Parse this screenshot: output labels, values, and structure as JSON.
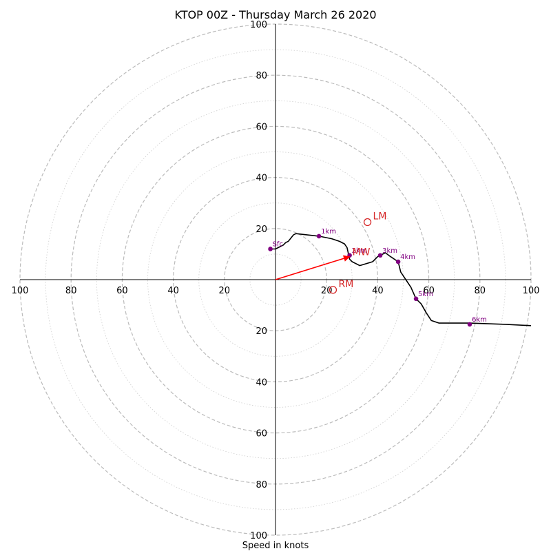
{
  "chart_data": {
    "type": "scatter",
    "subtype": "hodograph",
    "title": "KTOP 00Z - Thursday March 26 2020",
    "xlabel": "Speed in knots",
    "ylabel": "",
    "xlim": [
      -100,
      100
    ],
    "ylim": [
      -100,
      100
    ],
    "grid": true,
    "ring_major_step": 20,
    "ring_minor_step": 10,
    "tick_labels_x": [
      "100",
      "80",
      "60",
      "40",
      "20",
      "",
      "20",
      "40",
      "60",
      "80",
      "100"
    ],
    "tick_labels_y": [
      "100",
      "80",
      "60",
      "40",
      "20",
      "",
      "20",
      "40",
      "60",
      "80",
      "100"
    ],
    "colors": {
      "trace": "#000000",
      "height_markers": "#800080",
      "storm_motion": "#d62728",
      "mean_wind_arrow": "#ff0000",
      "major_grid": "#bbbbbb",
      "minor_grid": "#d2d2d2"
    },
    "trace": {
      "u": [
        -2,
        0,
        3,
        4,
        5,
        7,
        8,
        17,
        22,
        25,
        27,
        28,
        29,
        30,
        33,
        38,
        40,
        43,
        45,
        48,
        49,
        50,
        51,
        53,
        55,
        57,
        59,
        61,
        64,
        70,
        76,
        90,
        100
      ],
      "v": [
        12,
        12,
        13.5,
        14.5,
        15,
        17.5,
        18,
        17,
        16,
        15,
        14,
        12.5,
        8,
        7,
        5.5,
        7,
        9,
        10.5,
        9,
        7,
        3,
        1.5,
        0,
        -3,
        -7.5,
        -9.5,
        -13,
        -16,
        -17,
        -17,
        -17,
        -17.5,
        -18
      ]
    },
    "height_markers": [
      {
        "label": "Sfc",
        "u": -2,
        "v": 12
      },
      {
        "label": "1km",
        "u": 17,
        "v": 17
      },
      {
        "label": "2km",
        "u": 29,
        "v": 9.5
      },
      {
        "label": "3km",
        "u": 41,
        "v": 9.5
      },
      {
        "label": "4km",
        "u": 48,
        "v": 7
      },
      {
        "label": "5km",
        "u": 55,
        "v": -7.5
      },
      {
        "label": "6km",
        "u": 76,
        "v": -17.5
      }
    ],
    "storm_motion": [
      {
        "label": "LM",
        "u": 36,
        "v": 22.5
      },
      {
        "label": "RM",
        "u": 22.5,
        "v": -4
      }
    ],
    "mean_wind": {
      "label": "MW",
      "u": 29,
      "v": 9
    }
  }
}
